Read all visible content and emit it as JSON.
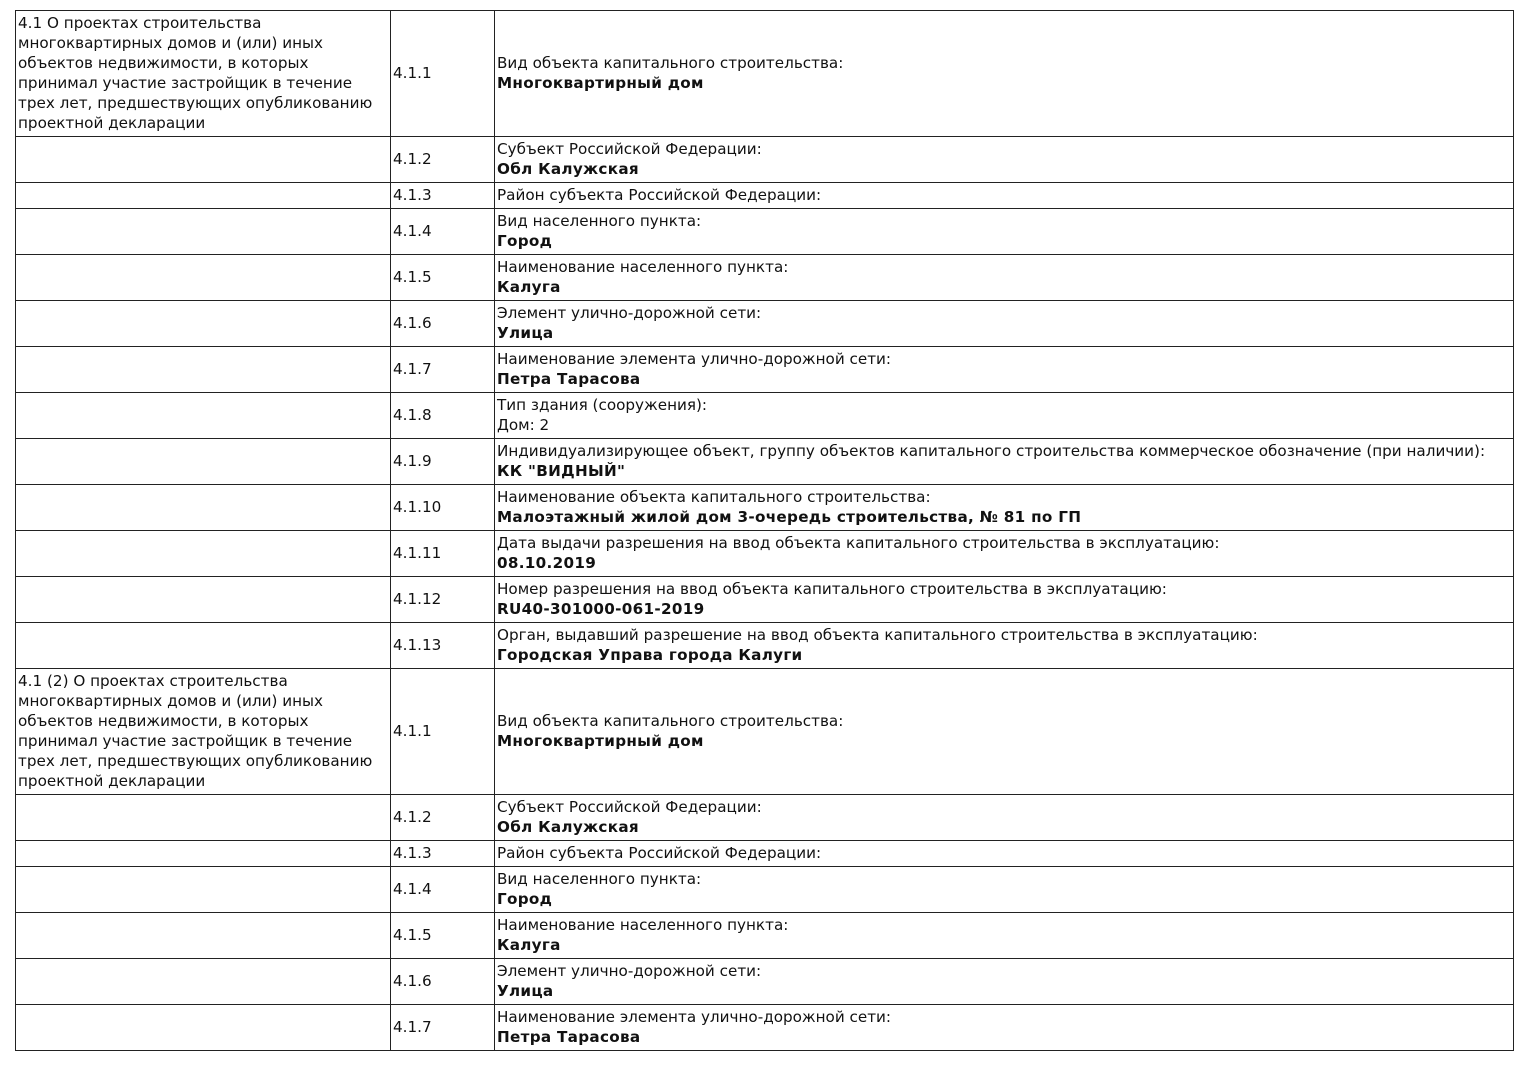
{
  "rows": [
    {
      "section": "4.1 О проектах строительства многоквартирных домов и (или) иных объектов недвижимости, в которых принимал участие застройщик в течение трех лет, предшествующих опубликованию проектной декларации",
      "code": "4.1.1",
      "label": "Вид объекта капитального строительства:",
      "value": "Многоквартирный дом",
      "value_bold": true
    },
    {
      "section": "",
      "code": "4.1.2",
      "label": "Субъект Российской Федерации:",
      "value": "Обл Калужская",
      "value_bold": true
    },
    {
      "section": "",
      "code": "4.1.3",
      "label": "Район субъекта Российской Федерации:",
      "value": "",
      "value_bold": true
    },
    {
      "section": "",
      "code": "4.1.4",
      "label": "Вид населенного пункта:",
      "value": "Город",
      "value_bold": true
    },
    {
      "section": "",
      "code": "4.1.5",
      "label": "Наименование населенного пункта:",
      "value": "Калуга",
      "value_bold": true
    },
    {
      "section": "",
      "code": "4.1.6",
      "label": "Элемент улично-дорожной сети:",
      "value": "Улица",
      "value_bold": true
    },
    {
      "section": "",
      "code": "4.1.7",
      "label": "Наименование элемента улично-дорожной сети:",
      "value": "Петра Тарасова",
      "value_bold": true
    },
    {
      "section": "",
      "code": "4.1.8",
      "label": "Тип здания (сооружения):",
      "value": "Дом: 2",
      "value_bold": false
    },
    {
      "section": "",
      "code": "4.1.9",
      "label": "Индивидуализирующее объект, группу объектов капитального строительства коммерческое обозначение (при наличии):",
      "value": "КК \"ВИДНЫЙ\"",
      "value_bold": true
    },
    {
      "section": "",
      "code": "4.1.10",
      "label": "Наименование объекта капитального строительства:",
      "value": "Малоэтажный жилой дом 3-очередь строительства, № 81 по ГП",
      "value_bold": true
    },
    {
      "section": "",
      "code": "4.1.11",
      "label": "Дата выдачи разрешения на ввод объекта капитального строительства в эксплуатацию:",
      "value": "08.10.2019",
      "value_bold": true
    },
    {
      "section": "",
      "code": "4.1.12",
      "label": "Номер разрешения на ввод объекта капитального строительства в эксплуатацию:",
      "value": "RU40-301000-061-2019",
      "value_bold": true
    },
    {
      "section": "",
      "code": "4.1.13",
      "label": "Орган, выдавший разрешение на ввод объекта капитального строительства в эксплуатацию:",
      "value": "Городская Управа города Калуги",
      "value_bold": true
    },
    {
      "section": "4.1 (2) О проектах строительства многоквартирных домов и (или) иных объектов недвижимости, в которых принимал участие застройщик в течение трех лет, предшествующих опубликованию проектной декларации",
      "code": "4.1.1",
      "label": "Вид объекта капитального строительства:",
      "value": "Многоквартирный дом",
      "value_bold": true
    },
    {
      "section": "",
      "code": "4.1.2",
      "label": "Субъект Российской Федерации:",
      "value": "Обл Калужская",
      "value_bold": true
    },
    {
      "section": "",
      "code": "4.1.3",
      "label": "Район субъекта Российской Федерации:",
      "value": "",
      "value_bold": true
    },
    {
      "section": "",
      "code": "4.1.4",
      "label": "Вид населенного пункта:",
      "value": "Город",
      "value_bold": true
    },
    {
      "section": "",
      "code": "4.1.5",
      "label": "Наименование населенного пункта:",
      "value": "Калуга",
      "value_bold": true
    },
    {
      "section": "",
      "code": "4.1.6",
      "label": "Элемент улично-дорожной сети:",
      "value": "Улица",
      "value_bold": true
    },
    {
      "section": "",
      "code": "4.1.7",
      "label": "Наименование элемента улично-дорожной сети:",
      "value": "Петра Тарасова",
      "value_bold": true
    }
  ]
}
